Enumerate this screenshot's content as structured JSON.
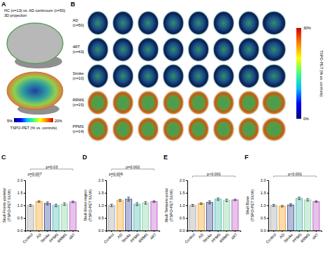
{
  "figure": {
    "panel_a": {
      "label": "A",
      "title": "HC (n=13) vs. AD continuum (n=50)",
      "subtitle": "3D projection",
      "colorbar": {
        "range": [
          5,
          20
        ],
        "ticks": [
          {
            "value": 5,
            "label": "5%"
          },
          {
            "value": 20,
            "label": "20%"
          }
        ],
        "label": "TSPO-PET (% vs. controls)"
      }
    },
    "panel_b": {
      "label": "B",
      "rows": [
        {
          "group": "AD",
          "n": "(n=50)"
        },
        {
          "group": "4RT",
          "n": "(n=43)"
        },
        {
          "group": "Stroke",
          "n": "(n=10)"
        },
        {
          "group": "RRMS",
          "n": "(n=15)"
        },
        {
          "group": "PPMS",
          "n": "(n=14)"
        }
      ],
      "colorbar": {
        "range": [
          0,
          30
        ],
        "ticks": [
          {
            "value": 0,
            "label": "0%"
          },
          {
            "value": 30,
            "label": "30%"
          }
        ],
        "label": "TSPO-PET (% vs. controls)"
      }
    }
  },
  "chart_data": [
    {
      "type": "bar",
      "panel_label": "C",
      "y_label": [
        "Skull-Fronto-parietal",
        "(TSPO-PET SUVr)"
      ],
      "categories": [
        "Control",
        "AD",
        "Stroke",
        "PPMS",
        "RRMS",
        "4RT"
      ],
      "values": [
        1,
        1.15,
        1.08,
        1,
        1.05,
        1.14
      ],
      "errors": [
        0.04,
        0.03,
        0.06,
        0.05,
        0.05,
        0.03
      ],
      "colors": [
        "#9e9e9e",
        "#f39c12",
        "#2c3e8f",
        "#3fb6a8",
        "#7ccf9a",
        "#b94fc4"
      ],
      "ylim": [
        0,
        2
      ],
      "yticks": [
        {
          "value": 0,
          "label": "0.0"
        },
        {
          "value": 0.5,
          "label": "0.5"
        },
        {
          "value": 1,
          "label": "1.0"
        },
        {
          "value": 1.5,
          "label": "1.5"
        },
        {
          "value": 2,
          "label": "2.0"
        }
      ],
      "annotations": [
        {
          "text": "p=0.007",
          "between": [
            "Control",
            "AD"
          ]
        },
        {
          "text": "p=0.03",
          "between": [
            "Control",
            "4RT"
          ]
        }
      ]
    },
    {
      "type": "bar",
      "panel_label": "D",
      "y_label": [
        "Skull-Motor-region",
        "(TSPO-PET SUVr)"
      ],
      "categories": [
        "Control",
        "AD",
        "Stroke",
        "PPMS",
        "RRMS",
        "4RT"
      ],
      "values": [
        1,
        1.2,
        1.25,
        1.05,
        1.1,
        1.15
      ],
      "errors": [
        0.05,
        0.04,
        0.08,
        0.06,
        0.05,
        0.03
      ],
      "colors": [
        "#9e9e9e",
        "#f39c12",
        "#2c3e8f",
        "#3fb6a8",
        "#7ccf9a",
        "#b94fc4"
      ],
      "ylim": [
        0,
        2
      ],
      "yticks": [
        {
          "value": 0,
          "label": "0.0"
        },
        {
          "value": 0.5,
          "label": "0.5"
        },
        {
          "value": 1,
          "label": "1.0"
        },
        {
          "value": 1.5,
          "label": "1.5"
        },
        {
          "value": 2,
          "label": "2.0"
        }
      ],
      "annotations": [
        {
          "text": "p=0.006",
          "between": [
            "Control",
            "AD"
          ]
        },
        {
          "text": "p=0.002",
          "between": [
            "Control",
            "4RT"
          ]
        }
      ]
    },
    {
      "type": "bar",
      "panel_label": "E",
      "y_label": [
        "Skull-Tempero-polar",
        "(TSPO-PET SUVr)"
      ],
      "categories": [
        "Control",
        "AD",
        "Stroke",
        "PPMS",
        "RRMS",
        "4RT"
      ],
      "values": [
        1,
        1.07,
        1.12,
        1.25,
        1.2,
        1.22
      ],
      "errors": [
        0.04,
        0.03,
        0.06,
        0.05,
        0.05,
        0.03
      ],
      "colors": [
        "#9e9e9e",
        "#f39c12",
        "#2c3e8f",
        "#3fb6a8",
        "#7ccf9a",
        "#b94fc4"
      ],
      "ylim": [
        0,
        2
      ],
      "yticks": [
        {
          "value": 0,
          "label": "0.0"
        },
        {
          "value": 0.5,
          "label": "0.5"
        },
        {
          "value": 1,
          "label": "1.0"
        },
        {
          "value": 1.5,
          "label": "1.5"
        },
        {
          "value": 2,
          "label": "2.0"
        }
      ],
      "annotations": [
        {
          "text": "p<0.001",
          "between": [
            "Control",
            "4RT"
          ]
        }
      ]
    },
    {
      "type": "bar",
      "panel_label": "F",
      "y_label": [
        "Skull-Base",
        "(TSPO-PET SUVr)"
      ],
      "categories": [
        "Control",
        "AD",
        "Stroke",
        "PPMS",
        "RRMS",
        "4RT"
      ],
      "values": [
        1,
        0.97,
        1.02,
        1.28,
        1.22,
        1.15
      ],
      "errors": [
        0.04,
        0.03,
        0.05,
        0.05,
        0.05,
        0.03
      ],
      "colors": [
        "#9e9e9e",
        "#f39c12",
        "#2c3e8f",
        "#3fb6a8",
        "#7ccf9a",
        "#b94fc4"
      ],
      "ylim": [
        0,
        2
      ],
      "yticks": [
        {
          "value": 0,
          "label": "0.0"
        },
        {
          "value": 0.5,
          "label": "0.5"
        },
        {
          "value": 1,
          "label": "1.0"
        },
        {
          "value": 1.5,
          "label": "1.5"
        },
        {
          "value": 2,
          "label": "2.0"
        }
      ],
      "annotations": [
        {
          "text": "p<0.001",
          "between": [
            "Control",
            "4RT"
          ]
        }
      ]
    }
  ]
}
